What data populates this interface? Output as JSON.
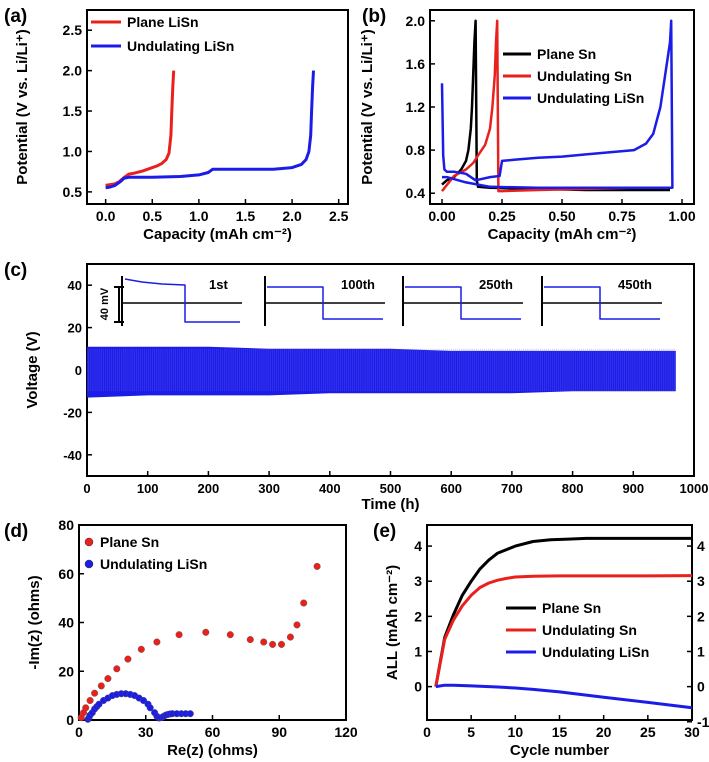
{
  "panels": {
    "a": {
      "label": "(a)",
      "xlabel": "Capacity (mAh cm⁻²)",
      "ylabel": "Potential (V vs. Li/Li⁺)",
      "xticks": [
        "0.0",
        "0.5",
        "1.0",
        "1.5",
        "2.0",
        "2.5"
      ],
      "yticks": [
        "0.5",
        "1.0",
        "1.5",
        "2.0",
        "2.5"
      ],
      "legend": [
        "Plane LiSn",
        "Undulating LiSn"
      ]
    },
    "b": {
      "label": "(b)",
      "xlabel": "Capacity (mAh cm⁻²)",
      "ylabel": "Potential (V vs. Li/Li⁺)",
      "xticks": [
        "0.00",
        "0.25",
        "0.50",
        "0.75",
        "1.00"
      ],
      "yticks": [
        "0.4",
        "0.8",
        "1.2",
        "1.6",
        "2.0"
      ],
      "legend": [
        "Plane Sn",
        "Undulating Sn",
        "Undulating LiSn"
      ]
    },
    "c": {
      "label": "(c)",
      "xlabel": "Time (h)",
      "ylabel": "Voltage (V)",
      "xticks": [
        "0",
        "100",
        "200",
        "300",
        "400",
        "500",
        "600",
        "700",
        "800",
        "900",
        "1000"
      ],
      "yticks": [
        "40",
        "20",
        "0",
        "-20",
        "-40"
      ],
      "insets": [
        "1st",
        "100th",
        "250th",
        "450th"
      ],
      "scale_label": "40 mV"
    },
    "d": {
      "label": "(d)",
      "xlabel": "Re(z) (ohms)",
      "ylabel": "-Im(z) (ohms)",
      "xticks": [
        "0",
        "30",
        "60",
        "90",
        "120"
      ],
      "yticks": [
        "0",
        "20",
        "40",
        "60",
        "80"
      ],
      "legend": [
        "Plane Sn",
        "Undulating LiSn"
      ]
    },
    "e": {
      "label": "(e)",
      "xlabel": "Cycle number",
      "ylabel": "ALL (mAh cm⁻²)",
      "xticks": [
        "0",
        "5",
        "10",
        "15",
        "20",
        "25",
        "30"
      ],
      "yticks": [
        "0",
        "1",
        "2",
        "3",
        "4"
      ],
      "y2ticks": [
        "-1",
        "0",
        "1",
        "2",
        "3",
        "4"
      ],
      "legend": [
        "Plane Sn",
        "Undulating Sn",
        "Undulating LiSn"
      ]
    }
  },
  "colors": {
    "black": "#000000",
    "red": "#e8211d",
    "blue": "#1c1ce8"
  },
  "chart_data": [
    {
      "type": "line",
      "panel": "a",
      "xlabel": "Capacity (mAh cm⁻²)",
      "ylabel": "Potential (V vs. Li/Li⁺)",
      "xlim": [
        -0.2,
        2.6
      ],
      "ylim": [
        0.35,
        2.75
      ],
      "series": [
        {
          "name": "Plane LiSn",
          "color": "#e8211d",
          "x": [
            0,
            0.05,
            0.1,
            0.15,
            0.2,
            0.25,
            0.3,
            0.4,
            0.5,
            0.55,
            0.6,
            0.65,
            0.68,
            0.7,
            0.71,
            0.72,
            0.73
          ],
          "y": [
            0.58,
            0.59,
            0.6,
            0.63,
            0.68,
            0.72,
            0.73,
            0.76,
            0.8,
            0.82,
            0.85,
            0.9,
            0.98,
            1.2,
            1.5,
            1.8,
            2.0
          ]
        },
        {
          "name": "Undulating LiSn",
          "color": "#1c1ce8",
          "x": [
            0,
            0.05,
            0.1,
            0.15,
            0.2,
            0.25,
            0.3,
            0.5,
            0.8,
            1.0,
            1.1,
            1.15,
            1.2,
            1.5,
            1.8,
            2.0,
            2.1,
            2.15,
            2.18,
            2.2,
            2.21,
            2.22,
            2.23
          ],
          "y": [
            0.55,
            0.56,
            0.58,
            0.62,
            0.67,
            0.68,
            0.68,
            0.68,
            0.69,
            0.71,
            0.74,
            0.78,
            0.78,
            0.78,
            0.78,
            0.8,
            0.84,
            0.9,
            1.0,
            1.2,
            1.5,
            1.8,
            2.0
          ]
        }
      ]
    },
    {
      "type": "line",
      "panel": "b",
      "xlabel": "Capacity (mAh cm⁻²)",
      "ylabel": "Potential (V vs. Li/Li⁺)",
      "xlim": [
        -0.05,
        1.05
      ],
      "ylim": [
        0.3,
        2.1
      ],
      "series": [
        {
          "name": "Plane Sn",
          "color": "#000000",
          "x": [
            0,
            0.02,
            0.05,
            0.08,
            0.1,
            0.11,
            0.12,
            0.125,
            0.13,
            0.135,
            0.14,
            0.145,
            0.15,
            0.2,
            0.4,
            0.6,
            0.8,
            0.95
          ],
          "y": [
            0.48,
            0.52,
            0.55,
            0.62,
            0.7,
            0.8,
            1.0,
            1.2,
            1.5,
            1.8,
            2.0,
            0.52,
            0.46,
            0.45,
            0.44,
            0.43,
            0.43,
            0.43
          ]
        },
        {
          "name": "Undulating Sn",
          "color": "#e8211d",
          "x": [
            0,
            0.05,
            0.1,
            0.13,
            0.15,
            0.18,
            0.2,
            0.21,
            0.22,
            0.225,
            0.23,
            0.235,
            0.25,
            0.4,
            0.6,
            0.8,
            0.95
          ],
          "y": [
            0.42,
            0.56,
            0.62,
            0.68,
            0.75,
            0.85,
            1.0,
            1.2,
            1.5,
            1.8,
            2.0,
            0.42,
            0.42,
            0.43,
            0.44,
            0.45,
            0.45
          ]
        },
        {
          "name": "Undulating LiSn",
          "color": "#1c1ce8",
          "x": [
            0,
            0.005,
            0.01,
            0.02,
            0.05,
            0.1,
            0.14,
            0.2,
            0.24,
            0.25,
            0.3,
            0.4,
            0.5,
            0.6,
            0.7,
            0.8,
            0.85,
            0.88,
            0.91,
            0.93,
            0.95,
            0.955,
            0.96,
            0.7,
            0.4,
            0.2,
            0.1,
            0.02,
            0.0
          ],
          "y": [
            1.42,
            0.75,
            0.62,
            0.6,
            0.6,
            0.58,
            0.52,
            0.55,
            0.56,
            0.7,
            0.71,
            0.73,
            0.74,
            0.76,
            0.78,
            0.8,
            0.86,
            0.95,
            1.2,
            1.5,
            1.8,
            2.0,
            0.45,
            0.45,
            0.45,
            0.46,
            0.5,
            0.55,
            0.55
          ]
        }
      ]
    },
    {
      "type": "line",
      "panel": "c",
      "xlabel": "Time (h)",
      "ylabel": "Voltage (V)",
      "xlim": [
        0,
        1000
      ],
      "ylim": [
        -50,
        50
      ],
      "series": [
        {
          "name": "",
          "color": "#1c1ce8",
          "x": [
            0,
            100,
            200,
            300,
            400,
            500,
            600,
            700,
            800,
            900,
            970
          ],
          "y_max": [
            11,
            11,
            11,
            10,
            10,
            10,
            9,
            9,
            9,
            9,
            9
          ],
          "y_min": [
            -13,
            -12,
            -12,
            -12,
            -11,
            -11,
            -11,
            -11,
            -10,
            -10,
            -10
          ]
        }
      ]
    },
    {
      "type": "scatter",
      "panel": "d",
      "xlabel": "Re(z) (ohms)",
      "ylabel": "-Im(z) (ohms)",
      "xlim": [
        0,
        120
      ],
      "ylim": [
        0,
        80
      ],
      "series": [
        {
          "name": "Plane Sn",
          "color": "#e8211d",
          "x": [
            1,
            2,
            3,
            5,
            7,
            10,
            13,
            17,
            22,
            28,
            35,
            45,
            57,
            68,
            77,
            83,
            87,
            91,
            95,
            98,
            101,
            107
          ],
          "y": [
            1,
            3,
            5,
            8,
            11,
            14,
            17,
            21,
            25,
            29,
            32,
            35,
            36,
            35,
            33,
            32,
            31,
            31,
            34,
            39,
            48,
            63
          ]
        },
        {
          "name": "Undulating LiSn",
          "color": "#1c1ce8",
          "x": [
            4,
            4.5,
            5,
            6,
            7,
            8,
            9,
            11,
            13,
            15,
            17,
            19,
            21,
            23,
            25,
            27,
            29,
            31,
            32,
            34,
            35,
            36,
            37,
            38,
            39,
            40,
            41,
            42,
            44,
            46,
            48,
            50
          ],
          "y": [
            0.3,
            1,
            2,
            3,
            4.5,
            5.5,
            6.5,
            8,
            9,
            10,
            10.5,
            10.8,
            10.8,
            10.5,
            10,
            9,
            8,
            6.5,
            5,
            3,
            1.5,
            0.8,
            1,
            1.5,
            2,
            2.3,
            2.5,
            2.6,
            2.6,
            2.6,
            2.6,
            2.6
          ]
        }
      ]
    },
    {
      "type": "line",
      "panel": "e",
      "xlabel": "Cycle number",
      "ylabel": "ALL (mAh cm⁻²)",
      "xlim": [
        0,
        30
      ],
      "ylim": [
        -0.95,
        4.6
      ],
      "series": [
        {
          "name": "Plane Sn",
          "color": "#000000",
          "x": [
            1,
            2,
            3,
            4,
            5,
            6,
            7,
            8,
            10,
            12,
            14,
            16,
            18,
            20,
            25,
            30
          ],
          "y": [
            0,
            1.4,
            2.05,
            2.6,
            3.0,
            3.35,
            3.6,
            3.8,
            4.0,
            4.13,
            4.18,
            4.2,
            4.22,
            4.22,
            4.22,
            4.22
          ]
        },
        {
          "name": "Undulating Sn",
          "color": "#e8211d",
          "x": [
            1,
            2,
            3,
            4,
            5,
            6,
            7,
            8,
            9,
            10,
            12,
            15,
            20,
            25,
            30
          ],
          "y": [
            0,
            1.35,
            1.9,
            2.3,
            2.6,
            2.82,
            2.95,
            3.03,
            3.08,
            3.12,
            3.14,
            3.15,
            3.15,
            3.15,
            3.16
          ]
        },
        {
          "name": "Undulating LiSn",
          "color": "#1c1ce8",
          "x": [
            1,
            2,
            3,
            5,
            8,
            10,
            12,
            15,
            20,
            25,
            30
          ],
          "y": [
            0,
            0.04,
            0.04,
            0.02,
            -0.01,
            -0.04,
            -0.08,
            -0.15,
            -0.3,
            -0.45,
            -0.6
          ]
        }
      ]
    }
  ]
}
